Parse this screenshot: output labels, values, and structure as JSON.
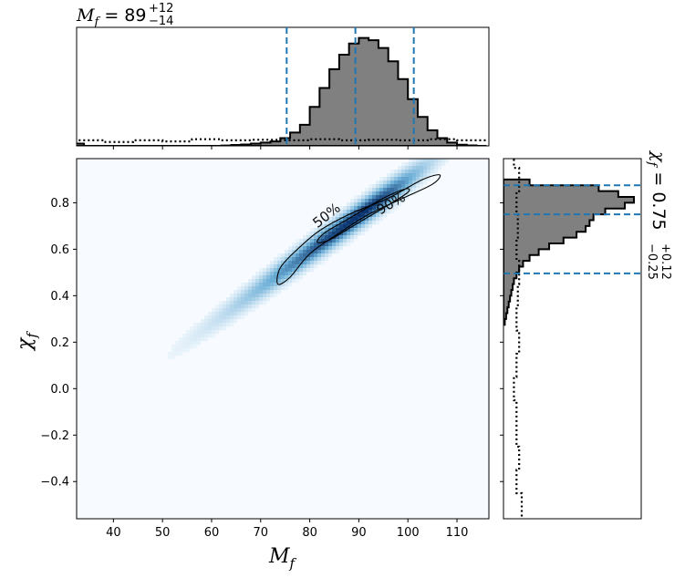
{
  "chart_data": {
    "type": "corner",
    "title": {
      "symbol": "M",
      "subscript": "f",
      "equals": " = ",
      "median": "89",
      "upper": "+12",
      "lower": "−14"
    },
    "side_title": {
      "symbol": "χ",
      "subscript": "f",
      "equals": " = 0.75",
      "upper": "+0.12",
      "lower": "−0.25"
    },
    "xlabel": {
      "symbol": "M",
      "subscript": "f"
    },
    "ylabel": {
      "symbol": "χ",
      "subscript": "f"
    },
    "xlim": [
      32.5,
      116.5
    ],
    "ylim": [
      -0.56,
      0.99
    ],
    "xticks": [
      40,
      50,
      60,
      70,
      80,
      90,
      100,
      110
    ],
    "xtick_labels": [
      "40",
      "50",
      "60",
      "70",
      "80",
      "90",
      "100",
      "110"
    ],
    "yticks": [
      -0.4,
      -0.2,
      0.0,
      0.2,
      0.4,
      0.6,
      0.8
    ],
    "ytick_labels": [
      "−0.4",
      "−0.2",
      "0.0",
      "0.2",
      "0.4",
      "0.6",
      "0.8"
    ],
    "quantiles_x": [
      75.3,
      89.3,
      101.2
    ],
    "quantiles_y": [
      0.496,
      0.75,
      0.875
    ],
    "contour_levels": [
      "50%",
      "90%"
    ],
    "colors": {
      "hist_fill": "#808080",
      "hist_edge": "#000000",
      "quantile_line": "#1f77b4",
      "density_low": "#f7fbff",
      "density_high": "#08306b"
    },
    "hist_x": {
      "bin_width": 2,
      "bin_starts": [
        32,
        34,
        36,
        38,
        40,
        42,
        44,
        46,
        48,
        50,
        52,
        54,
        56,
        58,
        60,
        62,
        64,
        66,
        68,
        70,
        72,
        74,
        76,
        78,
        80,
        82,
        84,
        86,
        88,
        90,
        92,
        94,
        96,
        98,
        100,
        102,
        104,
        106,
        108,
        110,
        112,
        114
      ],
      "heights": [
        0.02,
        0,
        0,
        0,
        0,
        0,
        0,
        0,
        0,
        0,
        0,
        0,
        0,
        0,
        0,
        0.003,
        0.008,
        0.012,
        0.02,
        0.03,
        0.04,
        0.07,
        0.12,
        0.19,
        0.35,
        0.52,
        0.69,
        0.82,
        0.92,
        0.97,
        0.95,
        0.88,
        0.76,
        0.6,
        0.42,
        0.26,
        0.14,
        0.07,
        0.03,
        0.01,
        0.004,
        0
      ]
    },
    "hist_x_prior": {
      "bin_starts": [
        32,
        38,
        44,
        50,
        56,
        62,
        68,
        74,
        80,
        86,
        92,
        98,
        104,
        110
      ],
      "heights": [
        0.05,
        0.035,
        0.05,
        0.04,
        0.06,
        0.05,
        0.055,
        0.05,
        0.06,
        0.05,
        0.055,
        0.05,
        0.06,
        0.05
      ]
    },
    "hist_y": {
      "bin_width": 0.025,
      "bin_starts": [
        0.275,
        0.3,
        0.325,
        0.35,
        0.375,
        0.4,
        0.425,
        0.45,
        0.475,
        0.5,
        0.525,
        0.55,
        0.575,
        0.6,
        0.625,
        0.65,
        0.675,
        0.7,
        0.725,
        0.75,
        0.775,
        0.8,
        0.825,
        0.85,
        0.875
      ],
      "heights": [
        0.01,
        0.02,
        0.03,
        0.04,
        0.05,
        0.06,
        0.07,
        0.08,
        0.1,
        0.12,
        0.15,
        0.2,
        0.27,
        0.35,
        0.46,
        0.56,
        0.63,
        0.66,
        0.69,
        0.78,
        0.93,
        1.0,
        0.88,
        0.73,
        0.2
      ]
    },
    "hist_y_prior": {
      "bin_starts": [
        -0.55,
        -0.45,
        -0.35,
        -0.25,
        -0.15,
        -0.05,
        0.05,
        0.15,
        0.25,
        0.35,
        0.45,
        0.55,
        0.65,
        0.75,
        0.85,
        0.95
      ],
      "heights": [
        0.14,
        0.1,
        0.12,
        0.1,
        0.1,
        0.08,
        0.1,
        0.12,
        0.1,
        0.11,
        0.12,
        0.1,
        0.11,
        0.1,
        0.12,
        0.08
      ]
    },
    "density": {
      "center": [
        91,
        0.76
      ],
      "slope": 0.0155,
      "along_sigma": 9,
      "cross_sigma": 0.033
    },
    "contour_90": [
      [
        73.5,
        0.45
      ],
      [
        74,
        0.52
      ],
      [
        77.5,
        0.6
      ],
      [
        82,
        0.68
      ],
      [
        88,
        0.75
      ],
      [
        96,
        0.82
      ],
      [
        103,
        0.9
      ],
      [
        106.5,
        0.92
      ],
      [
        105,
        0.88
      ],
      [
        99,
        0.82
      ],
      [
        92,
        0.75
      ],
      [
        86,
        0.67
      ],
      [
        80,
        0.58
      ],
      [
        76,
        0.48
      ]
    ],
    "contour_50": [
      [
        81.5,
        0.63
      ],
      [
        83,
        0.67
      ],
      [
        87,
        0.72
      ],
      [
        91,
        0.77
      ],
      [
        95,
        0.82
      ],
      [
        99.5,
        0.86
      ],
      [
        100,
        0.845
      ],
      [
        96,
        0.79
      ],
      [
        92,
        0.74
      ],
      [
        88,
        0.69
      ],
      [
        84,
        0.64
      ]
    ],
    "contour_label_positions": [
      {
        "label": "50%",
        "x": 84,
        "y": 0.73,
        "angle": -38
      },
      {
        "label": "90%",
        "x": 97,
        "y": 0.78,
        "angle": -30
      }
    ]
  }
}
